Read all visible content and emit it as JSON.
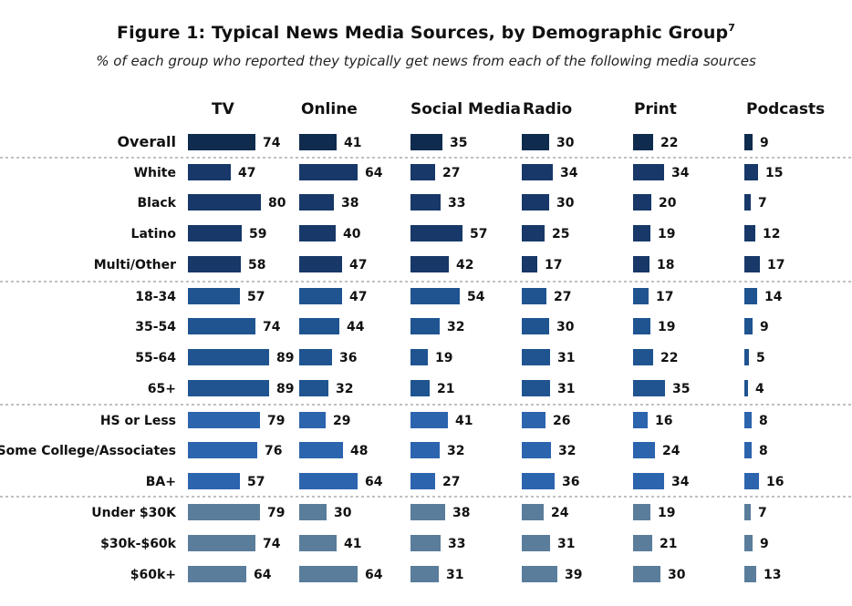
{
  "chart_data": {
    "type": "bar",
    "orientation": "horizontal",
    "layout": "small-multiples",
    "title": "Figure 1: Typical News Media Sources, by Demographic Group",
    "title_footnote": "7",
    "subtitle": "% of each group who reported they typically get news from each of the following media sources",
    "columns": [
      "TV",
      "Online",
      "Social Media",
      "Radio",
      "Print",
      "Podcasts"
    ],
    "groups": [
      {
        "name": "overall",
        "color": "#0f2b4e",
        "rows": [
          {
            "label": "Overall",
            "values": [
              74,
              41,
              35,
              30,
              22,
              9
            ]
          }
        ]
      },
      {
        "name": "race",
        "color": "#173868",
        "rows": [
          {
            "label": "White",
            "values": [
              47,
              64,
              27,
              34,
              34,
              15
            ]
          },
          {
            "label": "Black",
            "values": [
              80,
              38,
              33,
              30,
              20,
              7
            ]
          },
          {
            "label": "Latino",
            "values": [
              59,
              40,
              57,
              25,
              19,
              12
            ]
          },
          {
            "label": "Multi/Other",
            "values": [
              58,
              47,
              42,
              17,
              18,
              17
            ]
          }
        ]
      },
      {
        "name": "age",
        "color": "#1f5491",
        "rows": [
          {
            "label": "18-34",
            "values": [
              57,
              47,
              54,
              27,
              17,
              14
            ]
          },
          {
            "label": "35-54",
            "values": [
              74,
              44,
              32,
              30,
              19,
              9
            ]
          },
          {
            "label": "55-64",
            "values": [
              89,
              36,
              19,
              31,
              22,
              5
            ]
          },
          {
            "label": "65+",
            "values": [
              89,
              32,
              21,
              31,
              35,
              4
            ]
          }
        ]
      },
      {
        "name": "education",
        "color": "#2c64ae",
        "rows": [
          {
            "label": "HS or Less",
            "values": [
              79,
              29,
              41,
              26,
              16,
              8
            ]
          },
          {
            "label": "Some College/Associates",
            "values": [
              76,
              48,
              32,
              32,
              24,
              8
            ]
          },
          {
            "label": "BA+",
            "values": [
              57,
              64,
              27,
              36,
              34,
              16
            ]
          }
        ]
      },
      {
        "name": "income",
        "color": "#5a7d9b",
        "rows": [
          {
            "label": "Under $30K",
            "values": [
              79,
              30,
              38,
              24,
              19,
              7
            ]
          },
          {
            "label": "$30k-$60k",
            "values": [
              74,
              41,
              33,
              31,
              21,
              9
            ]
          },
          {
            "label": "$60k+",
            "values": [
              64,
              64,
              31,
              39,
              30,
              13
            ]
          }
        ]
      }
    ],
    "value_range": [
      0,
      100
    ],
    "group_separators": "dashed",
    "grid": false,
    "legend": "none"
  }
}
